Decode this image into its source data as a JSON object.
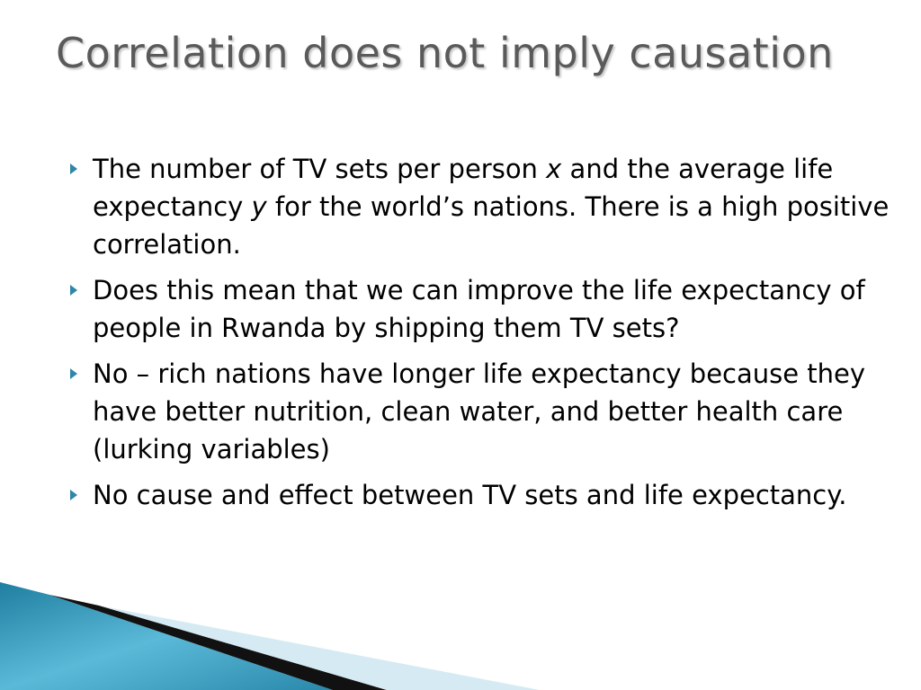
{
  "title": "Correlation does not imply causation",
  "bullets": [
    [
      "The number of TV sets per person ",
      "x",
      " and the average life expectancy ",
      "y",
      " for the world’s nations. There is a high positive correlation."
    ],
    [
      "Does this mean that we can improve the life expectancy of people in Rwanda by shipping them TV sets?"
    ],
    [
      "No – rich nations have longer life expectancy because they have better nutrition, clean water, and better health care (lurking variables)"
    ],
    [
      "No cause and effect between TV sets and life expectancy."
    ]
  ]
}
